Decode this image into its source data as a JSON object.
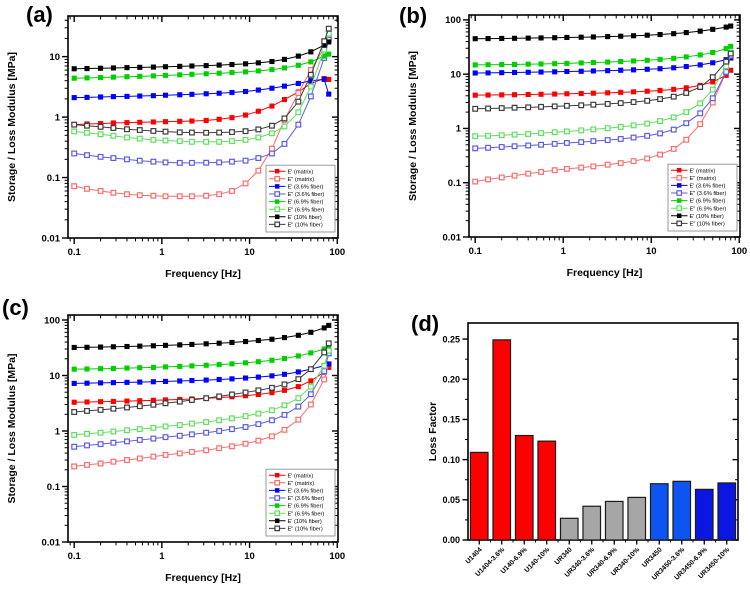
{
  "figure": {
    "background": "#ffffff"
  },
  "chart_data": [
    {
      "id": "a",
      "panel_label": "(a)",
      "type": "line",
      "xlabel": "Frequency [Hz]",
      "ylabel": "Storage / Loss Modulus [MPa]",
      "xscale": "log",
      "yscale": "log",
      "grid": false,
      "legend_position": "bottom-right",
      "xlim": [
        0.085,
        102
      ],
      "ylim": [
        0.01,
        47
      ],
      "xtick_values": [
        0.1,
        1,
        10,
        100
      ],
      "xtick_labels": [
        "0.1",
        "1",
        "10",
        "100"
      ],
      "ytick_values": [
        0.01,
        0.1,
        1,
        10
      ],
      "ytick_labels": [
        "0.01",
        "0.1",
        "1",
        "10"
      ],
      "x": [
        0.1,
        0.14,
        0.2,
        0.28,
        0.4,
        0.56,
        0.8,
        1.1,
        1.6,
        2.2,
        3.2,
        4.5,
        6.3,
        9,
        12.6,
        18,
        25,
        36,
        50,
        71,
        80
      ],
      "series": [
        {
          "name": "E' (matrix)",
          "color": "#ff0000",
          "marker": "filled-square",
          "values": [
            0.75,
            0.77,
            0.78,
            0.8,
            0.81,
            0.82,
            0.83,
            0.84,
            0.85,
            0.86,
            0.88,
            0.92,
            0.98,
            1.08,
            1.25,
            1.52,
            1.95,
            2.6,
            3.6,
            4.35,
            4.2
          ]
        },
        {
          "name": "E\" (matrix)",
          "color": "#f96d6d",
          "marker": "open-square",
          "values": [
            0.072,
            0.065,
            0.06,
            0.056,
            0.053,
            0.051,
            0.05,
            0.049,
            0.049,
            0.049,
            0.05,
            0.053,
            0.06,
            0.08,
            0.13,
            0.3,
            0.9,
            2.5,
            6.0,
            14,
            21
          ]
        },
        {
          "name": "E' (3.6% fiber)",
          "color": "#0000ff",
          "marker": "filled-square",
          "values": [
            2.1,
            2.12,
            2.15,
            2.18,
            2.2,
            2.23,
            2.26,
            2.3,
            2.34,
            2.38,
            2.43,
            2.48,
            2.55,
            2.65,
            2.8,
            3.0,
            3.25,
            3.6,
            4.0,
            4.2,
            2.4
          ]
        },
        {
          "name": "E\" (3.6% fiber)",
          "color": "#5c5ce6",
          "marker": "open-square",
          "values": [
            0.25,
            0.235,
            0.22,
            0.21,
            0.2,
            0.19,
            0.183,
            0.178,
            0.175,
            0.175,
            0.176,
            0.178,
            0.183,
            0.19,
            0.21,
            0.25,
            0.36,
            0.75,
            2.2,
            9.5,
            19
          ]
        },
        {
          "name": "E' (6.9% fiber)",
          "color": "#00d000",
          "marker": "filled-square",
          "values": [
            4.4,
            4.45,
            4.5,
            4.58,
            4.65,
            4.72,
            4.8,
            4.9,
            5.0,
            5.1,
            5.2,
            5.32,
            5.45,
            5.6,
            5.8,
            6.1,
            6.5,
            7.2,
            8.2,
            10.2,
            11
          ]
        },
        {
          "name": "E\" (6.9% fiber)",
          "color": "#5fdf5f",
          "marker": "open-square",
          "values": [
            0.58,
            0.55,
            0.52,
            0.49,
            0.46,
            0.44,
            0.42,
            0.41,
            0.4,
            0.39,
            0.39,
            0.39,
            0.4,
            0.42,
            0.46,
            0.54,
            0.7,
            1.2,
            3.2,
            13,
            24
          ]
        },
        {
          "name": "E' (10% fiber)",
          "color": "#000000",
          "marker": "filled-square",
          "values": [
            6.3,
            6.35,
            6.42,
            6.5,
            6.57,
            6.65,
            6.72,
            6.8,
            6.9,
            7.0,
            7.1,
            7.25,
            7.4,
            7.6,
            7.9,
            8.3,
            9.0,
            10.2,
            12,
            15.5,
            17.5
          ]
        },
        {
          "name": "E\" (10% fiber)",
          "color": "#3c3c3c",
          "marker": "open-square",
          "values": [
            0.75,
            0.72,
            0.69,
            0.66,
            0.63,
            0.61,
            0.59,
            0.575,
            0.56,
            0.555,
            0.55,
            0.555,
            0.565,
            0.585,
            0.625,
            0.72,
            0.95,
            1.8,
            5.0,
            18,
            29
          ]
        }
      ]
    },
    {
      "id": "b",
      "panel_label": "(b)",
      "type": "line",
      "xlabel": "Frequency [Hz]",
      "ylabel": "Storage / Loss Modulus [MPa]",
      "xscale": "log",
      "yscale": "log",
      "grid": false,
      "legend_position": "bottom-right",
      "xlim": [
        0.085,
        102
      ],
      "ylim": [
        0.01,
        123
      ],
      "xtick_values": [
        0.1,
        1,
        10,
        100
      ],
      "xtick_labels": [
        "0.1",
        "1",
        "10",
        "100"
      ],
      "ytick_values": [
        0.01,
        0.1,
        1,
        10,
        100
      ],
      "ytick_labels": [
        "0.01",
        "0.1",
        "1",
        "10",
        "100"
      ],
      "x": [
        0.1,
        0.14,
        0.2,
        0.28,
        0.4,
        0.56,
        0.8,
        1.1,
        1.6,
        2.2,
        3.2,
        4.5,
        6.3,
        9,
        12.6,
        18,
        25,
        36,
        50,
        71,
        80
      ],
      "series": [
        {
          "name": "E' (matrix)",
          "color": "#ff0000",
          "marker": "filled-square",
          "values": [
            4.1,
            4.12,
            4.15,
            4.18,
            4.22,
            4.26,
            4.3,
            4.35,
            4.4,
            4.46,
            4.53,
            4.62,
            4.72,
            4.85,
            5.0,
            5.25,
            5.6,
            6.2,
            7.2,
            9.5,
            11.8
          ]
        },
        {
          "name": "E\" (matrix)",
          "color": "#f96d6d",
          "marker": "open-square",
          "values": [
            0.105,
            0.115,
            0.125,
            0.135,
            0.147,
            0.158,
            0.17,
            0.18,
            0.19,
            0.2,
            0.215,
            0.23,
            0.25,
            0.28,
            0.33,
            0.42,
            0.62,
            1.2,
            3.0,
            11,
            20
          ]
        },
        {
          "name": "E' (3.6% fiber)",
          "color": "#0000ff",
          "marker": "filled-square",
          "values": [
            10.5,
            10.55,
            10.65,
            10.75,
            10.85,
            10.95,
            11.05,
            11.2,
            11.3,
            11.45,
            11.6,
            11.8,
            12.0,
            12.3,
            12.6,
            13.1,
            13.8,
            14.8,
            16.2,
            18.5,
            20
          ]
        },
        {
          "name": "E\" (3.6% fiber)",
          "color": "#5c5ce6",
          "marker": "open-square",
          "values": [
            0.43,
            0.44,
            0.455,
            0.47,
            0.485,
            0.5,
            0.52,
            0.54,
            0.56,
            0.585,
            0.61,
            0.64,
            0.68,
            0.73,
            0.81,
            0.95,
            1.25,
            1.9,
            3.6,
            11,
            22
          ]
        },
        {
          "name": "E' (6.9% fiber)",
          "color": "#00d000",
          "marker": "filled-square",
          "values": [
            14.8,
            14.9,
            15.0,
            15.1,
            15.3,
            15.4,
            15.6,
            15.8,
            16.1,
            16.4,
            16.7,
            17.1,
            17.5,
            18.0,
            18.7,
            19.6,
            20.8,
            22.6,
            25,
            29.5,
            32.5
          ]
        },
        {
          "name": "E\" (6.9% fiber)",
          "color": "#5fdf5f",
          "marker": "open-square",
          "values": [
            0.72,
            0.73,
            0.75,
            0.77,
            0.79,
            0.82,
            0.85,
            0.88,
            0.92,
            0.96,
            1.01,
            1.07,
            1.14,
            1.23,
            1.37,
            1.6,
            2.0,
            2.9,
            5.2,
            14,
            25
          ]
        },
        {
          "name": "E' (10% fiber)",
          "color": "#000000",
          "marker": "filled-square",
          "values": [
            45,
            45.2,
            45.5,
            45.8,
            46.1,
            46.5,
            46.9,
            47.4,
            47.9,
            48.5,
            49.2,
            50,
            51,
            52.2,
            53.7,
            55.7,
            58.3,
            62,
            67,
            73.5,
            77
          ]
        },
        {
          "name": "E\" (10% fiber)",
          "color": "#3c3c3c",
          "marker": "open-square",
          "values": [
            2.3,
            2.33,
            2.37,
            2.41,
            2.45,
            2.5,
            2.55,
            2.61,
            2.67,
            2.74,
            2.83,
            2.93,
            3.06,
            3.23,
            3.47,
            3.85,
            4.5,
            5.8,
            8.8,
            17,
            24
          ]
        }
      ]
    },
    {
      "id": "c",
      "panel_label": "(c)",
      "type": "line",
      "xlabel": "Frequency [Hz]",
      "ylabel": "Storage / Loss Modulus [MPa]",
      "xscale": "log",
      "yscale": "log",
      "grid": false,
      "legend_position": "bottom-right",
      "xlim": [
        0.085,
        102
      ],
      "ylim": [
        0.01,
        123
      ],
      "xtick_values": [
        0.1,
        1,
        10,
        100
      ],
      "xtick_labels": [
        "0.1",
        "1",
        "10",
        "100"
      ],
      "ytick_values": [
        0.01,
        0.1,
        1,
        10,
        100
      ],
      "ytick_labels": [
        "0.01",
        "0.1",
        "1",
        "10",
        "100"
      ],
      "x": [
        0.1,
        0.14,
        0.2,
        0.28,
        0.4,
        0.56,
        0.8,
        1.1,
        1.6,
        2.2,
        3.2,
        4.5,
        6.3,
        9,
        12.6,
        18,
        25,
        36,
        50,
        71,
        80
      ],
      "series": [
        {
          "name": "E' (matrix)",
          "color": "#ff0000",
          "marker": "filled-square",
          "values": [
            3.3,
            3.33,
            3.37,
            3.41,
            3.46,
            3.51,
            3.57,
            3.63,
            3.7,
            3.78,
            3.88,
            4.0,
            4.14,
            4.32,
            4.55,
            4.9,
            5.4,
            6.3,
            8.0,
            11.5,
            14
          ]
        },
        {
          "name": "E\" (matrix)",
          "color": "#f96d6d",
          "marker": "open-square",
          "values": [
            0.23,
            0.245,
            0.26,
            0.28,
            0.3,
            0.32,
            0.345,
            0.37,
            0.395,
            0.42,
            0.45,
            0.49,
            0.53,
            0.59,
            0.67,
            0.8,
            1.05,
            1.6,
            3.0,
            8.5,
            16
          ]
        },
        {
          "name": "E' (3.6% fiber)",
          "color": "#0000ff",
          "marker": "filled-square",
          "values": [
            7.2,
            7.27,
            7.35,
            7.43,
            7.52,
            7.61,
            7.71,
            7.82,
            7.95,
            8.1,
            8.27,
            8.47,
            8.7,
            9.0,
            9.35,
            9.85,
            10.5,
            11.6,
            13,
            15,
            16
          ]
        },
        {
          "name": "E\" (3.6% fiber)",
          "color": "#5c5ce6",
          "marker": "open-square",
          "values": [
            0.52,
            0.55,
            0.58,
            0.615,
            0.65,
            0.69,
            0.73,
            0.775,
            0.82,
            0.87,
            0.93,
            1.0,
            1.08,
            1.18,
            1.33,
            1.56,
            1.95,
            2.75,
            4.6,
            12,
            25
          ]
        },
        {
          "name": "E' (6.9% fiber)",
          "color": "#00d000",
          "marker": "filled-square",
          "values": [
            13,
            13.1,
            13.25,
            13.4,
            13.6,
            13.8,
            14.0,
            14.3,
            14.6,
            14.9,
            15.3,
            15.7,
            16.2,
            16.9,
            17.7,
            18.8,
            20.3,
            22.5,
            25.5,
            30,
            32.5
          ]
        },
        {
          "name": "E\" (6.9% fiber)",
          "color": "#5fdf5f",
          "marker": "open-square",
          "values": [
            0.85,
            0.89,
            0.93,
            0.98,
            1.03,
            1.08,
            1.14,
            1.21,
            1.28,
            1.36,
            1.45,
            1.56,
            1.69,
            1.85,
            2.06,
            2.36,
            2.9,
            3.9,
            6.3,
            15,
            28
          ]
        },
        {
          "name": "E' (10% fiber)",
          "color": "#000000",
          "marker": "filled-square",
          "values": [
            32,
            32.2,
            32.5,
            32.9,
            33.3,
            33.8,
            34.3,
            34.9,
            35.6,
            36.3,
            37.2,
            38.2,
            39.4,
            40.9,
            42.7,
            45,
            48.2,
            53,
            60,
            72,
            80
          ]
        },
        {
          "name": "E\" (10% fiber)",
          "color": "#3c3c3c",
          "marker": "open-square",
          "values": [
            2.2,
            2.3,
            2.4,
            2.52,
            2.65,
            2.8,
            2.97,
            3.16,
            3.38,
            3.62,
            3.9,
            4.2,
            4.55,
            4.95,
            5.4,
            6.0,
            6.9,
            8.6,
            13,
            26,
            38
          ]
        }
      ]
    },
    {
      "id": "d",
      "panel_label": "(d)",
      "type": "bar",
      "xlabel": "",
      "ylabel": "Loss Factor",
      "grid": false,
      "ylim": [
        0,
        0.27
      ],
      "ytick_values": [
        0,
        0.05,
        0.1,
        0.15,
        0.2,
        0.25
      ],
      "ytick_labels": [
        "0.00",
        "0.05",
        "0.10",
        "0.15",
        "0.20",
        "0.25"
      ],
      "categories": [
        "U1404",
        "U1404-3.6%",
        "U140-6.9%",
        "U140-10%",
        "UR340",
        "UR340-3.6%",
        "UR340-6.9%",
        "UR340-10%",
        "UR3450",
        "UR3450-3.6%",
        "UR3450-6.9%",
        "UR3450-10%"
      ],
      "values": [
        0.109,
        0.249,
        0.13,
        0.123,
        0.027,
        0.042,
        0.048,
        0.053,
        0.07,
        0.073,
        0.063,
        0.071
      ],
      "bar_colors": [
        "#ff0000",
        "#ff0000",
        "#ff0000",
        "#ff0000",
        "#a6a6a6",
        "#a6a6a6",
        "#a6a6a6",
        "#a6a6a6",
        "#0d55f0",
        "#0d55f0",
        "#0b16e0",
        "#0b16e0"
      ],
      "bar_outline": "#1a1a1a"
    }
  ]
}
